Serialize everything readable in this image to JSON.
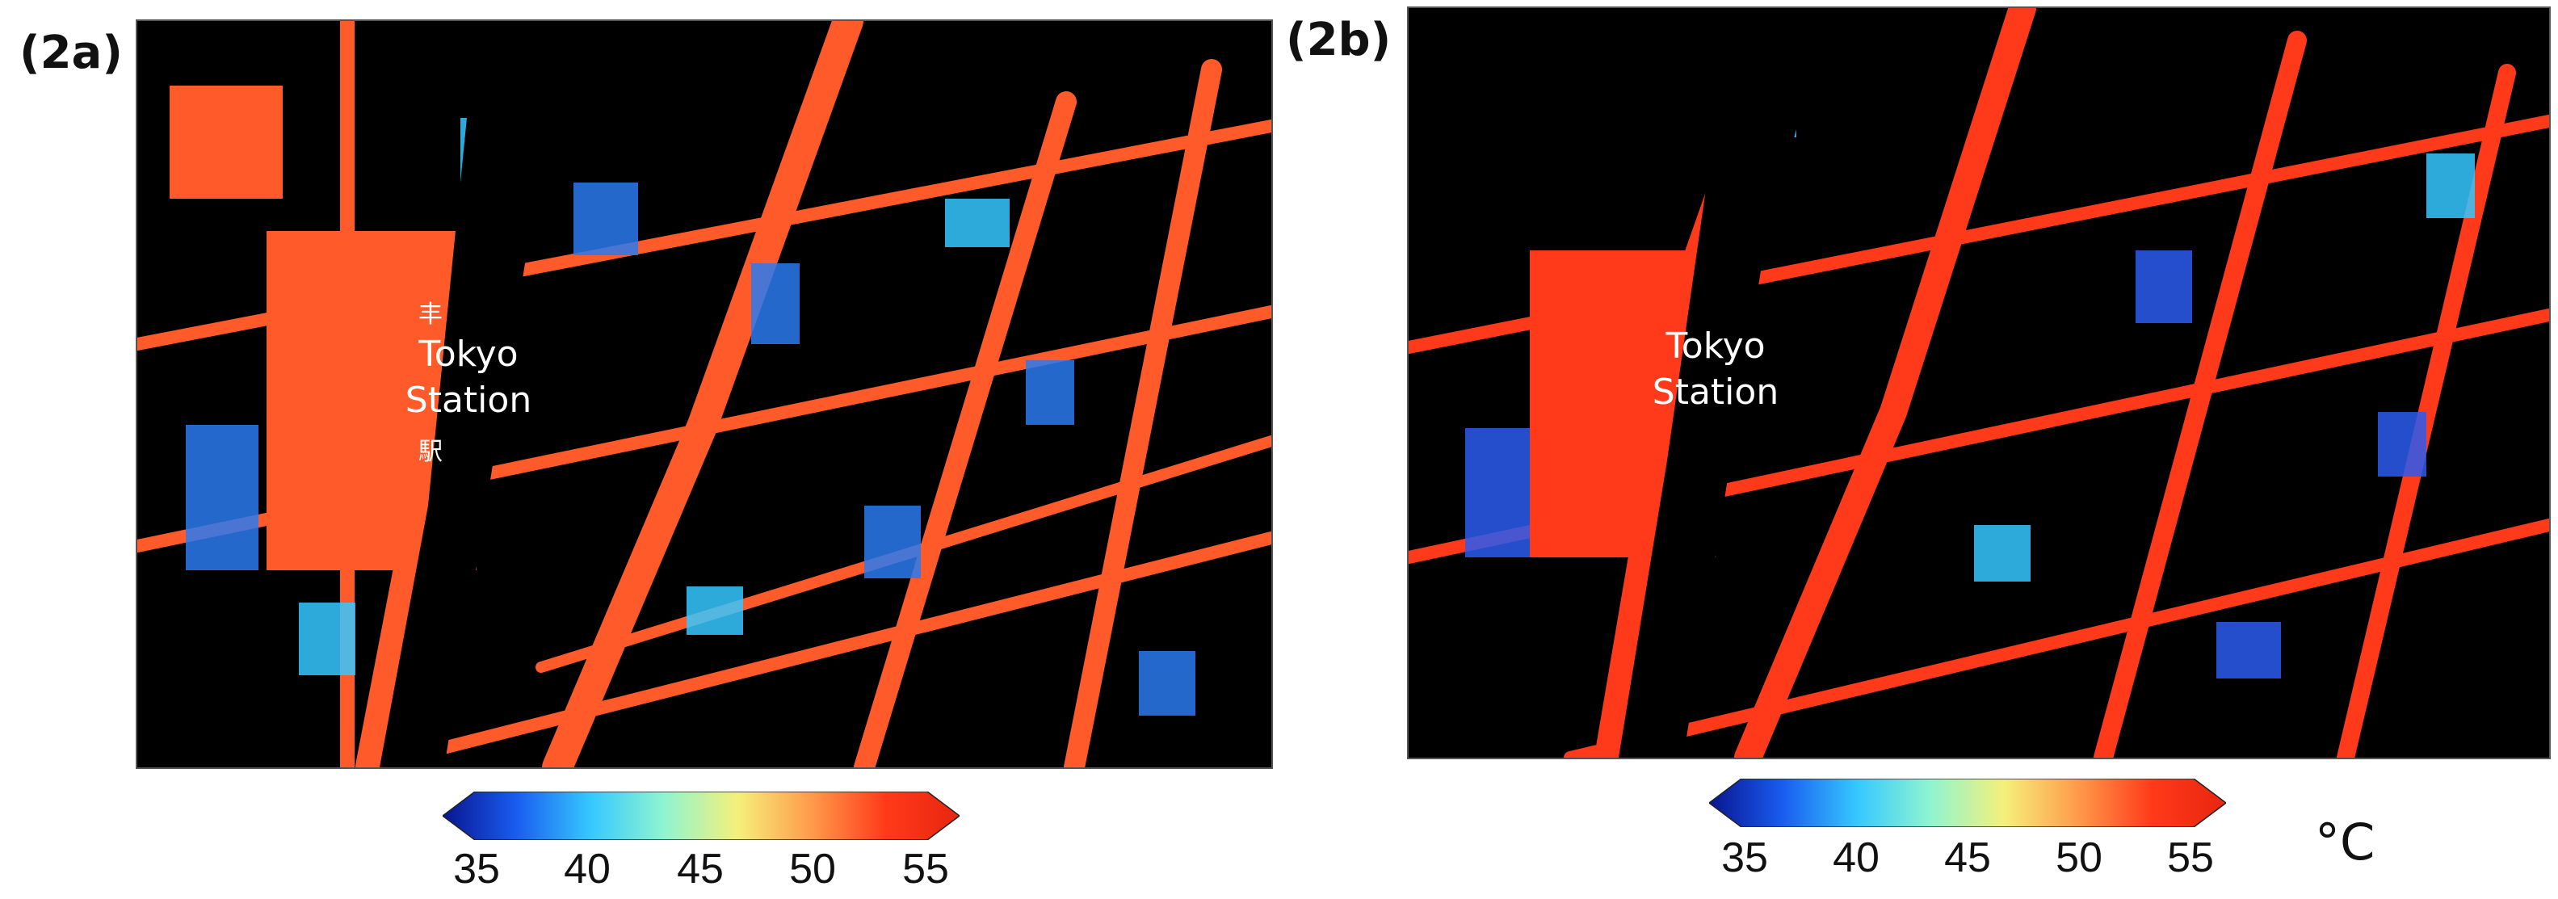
{
  "panels": [
    {
      "label": "(2a)",
      "station_label": "Tokyo\nStation",
      "glyph_top": "丰",
      "glyph_bottom": "駅"
    },
    {
      "label": "(2b)",
      "station_label": "Tokyo\nStation"
    }
  ],
  "colorbar": {
    "ticks": [
      "35",
      "40",
      "45",
      "50",
      "55"
    ],
    "min": 35,
    "max": 55,
    "colors": [
      "#08158f",
      "#1a5cf0",
      "#35c8ff",
      "#8ff5d0",
      "#f5f07a",
      "#ff9a4a",
      "#ff3a1a",
      "#e8250f"
    ],
    "unit": "°C"
  }
}
